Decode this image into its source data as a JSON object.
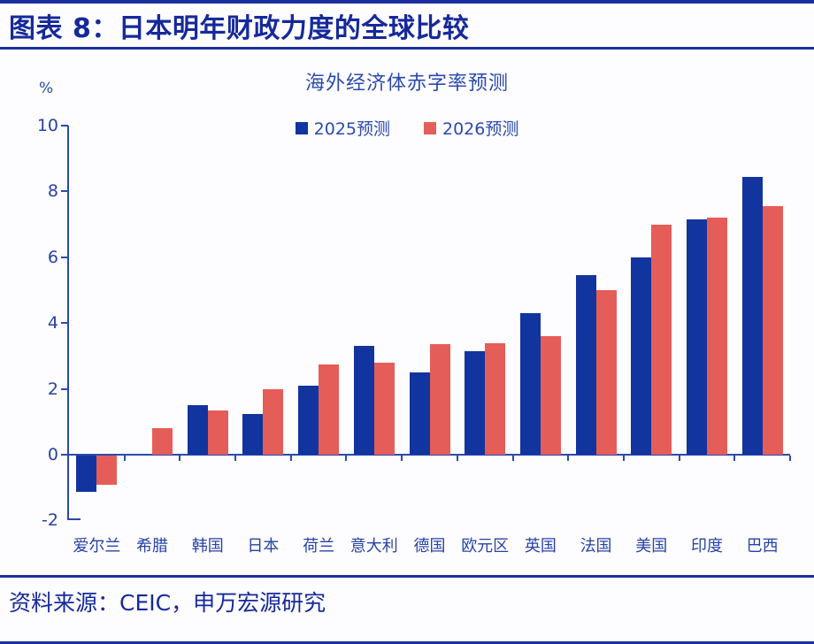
{
  "header": {
    "title": "图表 8：日本明年财政力度的全球比较"
  },
  "footer": {
    "source": "资料来源：CEIC，申万宏源研究"
  },
  "chart_data": {
    "type": "bar",
    "title": "海外经济体赤字率预测",
    "unit_label": "%",
    "categories": [
      "爱尔兰",
      "希腊",
      "韩国",
      "日本",
      "荷兰",
      "意大利",
      "德国",
      "欧元区",
      "英国",
      "法国",
      "美国",
      "印度",
      "巴西"
    ],
    "series": [
      {
        "name": "2025预测",
        "color": "#12349e",
        "values": [
          -1.1,
          0,
          1.5,
          1.25,
          2.1,
          3.3,
          2.5,
          3.15,
          4.3,
          5.45,
          6.0,
          7.15,
          8.45
        ]
      },
      {
        "name": "2026预测",
        "color": "#e55d58",
        "values": [
          -0.9,
          0.8,
          1.35,
          2.0,
          2.75,
          2.8,
          3.35,
          3.4,
          3.6,
          5.0,
          7.0,
          7.2,
          7.55
        ]
      }
    ],
    "ylim": [
      -2,
      10
    ],
    "ytick_step": 2,
    "grid": false,
    "legend_position": "top-center"
  },
  "colors": {
    "navy_text": "#16299b",
    "axis_text": "#2743a6",
    "axis_line": "#2b4aad",
    "rule": "#1b2f9e",
    "bar_2025": "#12349e",
    "bar_2026": "#e55d58",
    "background": "#fdfdff"
  }
}
